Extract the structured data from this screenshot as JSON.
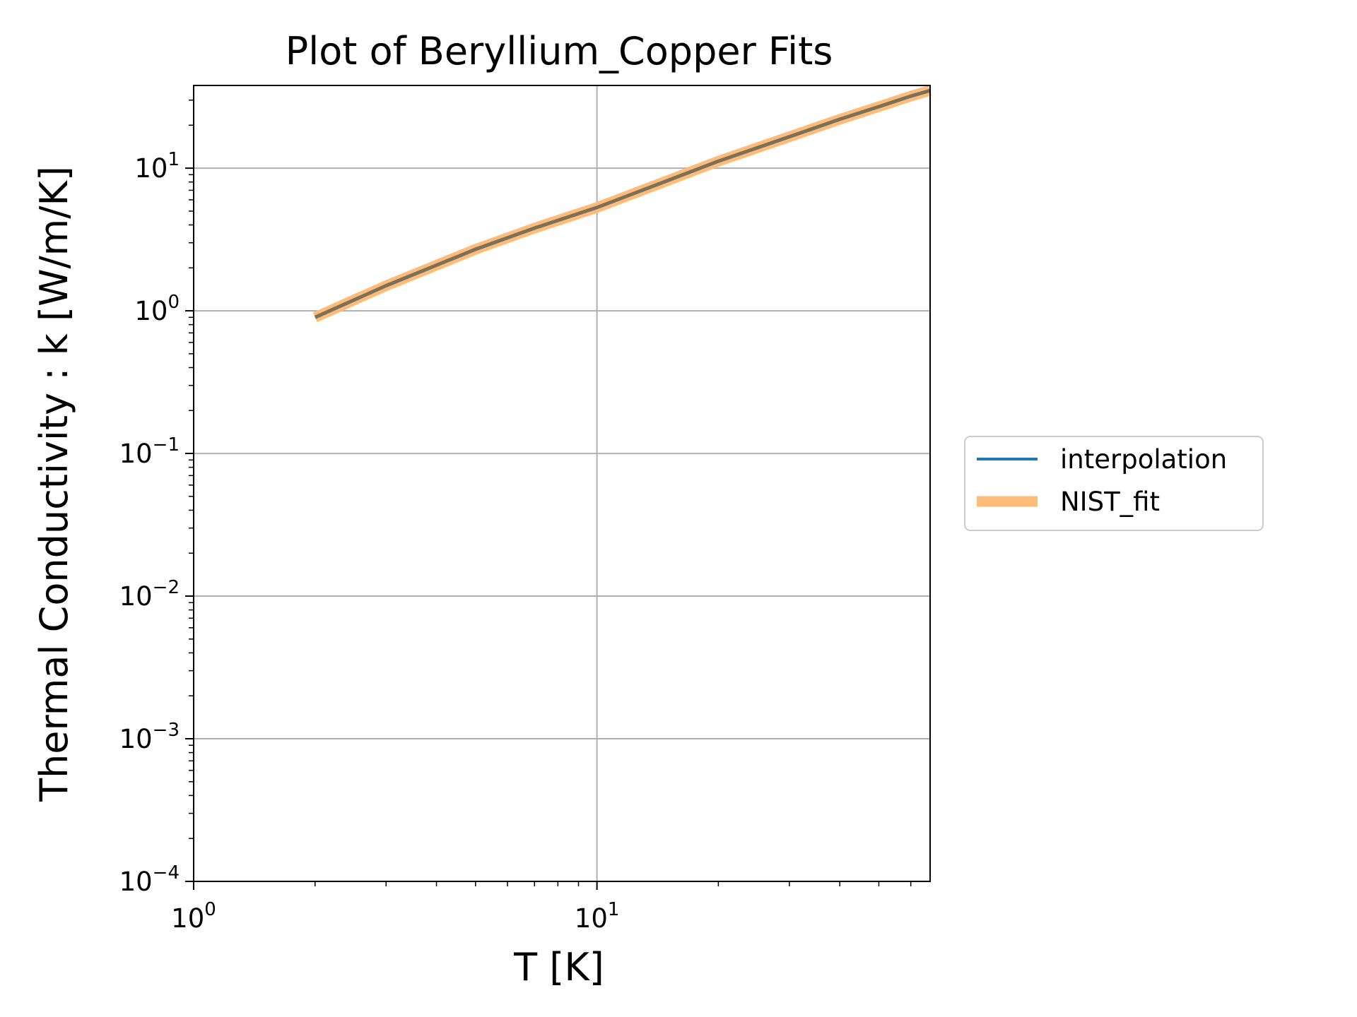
{
  "chart_data": {
    "type": "line",
    "title": "Plot of Beryllium_Copper Fits",
    "xlabel": "T [K]",
    "ylabel": "Thermal Conductivity : k [W/m/K]",
    "xscale": "log",
    "yscale": "log",
    "xlim": [
      1,
      67
    ],
    "ylim": [
      0.0001,
      38
    ],
    "grid": true,
    "legend": "right-outside",
    "x_ticks": [
      {
        "value": 1,
        "base": "10",
        "exp": "0"
      },
      {
        "value": 10,
        "base": "10",
        "exp": "1"
      }
    ],
    "y_ticks": [
      {
        "value": 0.0001,
        "base": "10",
        "exp": "−4"
      },
      {
        "value": 0.001,
        "base": "10",
        "exp": "−3"
      },
      {
        "value": 0.01,
        "base": "10",
        "exp": "−2"
      },
      {
        "value": 0.1,
        "base": "10",
        "exp": "−1"
      },
      {
        "value": 1,
        "base": "10",
        "exp": "0"
      },
      {
        "value": 10,
        "base": "10",
        "exp": "1"
      }
    ],
    "series": [
      {
        "name": "NIST_fit",
        "color": "#ffbb78",
        "x": [
          2,
          3,
          5,
          7,
          10,
          15,
          20,
          30,
          40,
          50,
          60,
          67
        ],
        "y": [
          0.9,
          1.5,
          2.7,
          3.8,
          5.3,
          8.2,
          11.2,
          16.6,
          22,
          27,
          32,
          35
        ]
      },
      {
        "name": "interpolation",
        "color": "#1f77b4",
        "x": [
          2,
          3,
          5,
          7,
          10,
          15,
          20,
          30,
          40,
          50,
          60,
          67
        ],
        "y": [
          0.9,
          1.5,
          2.7,
          3.8,
          5.3,
          8.2,
          11.2,
          16.6,
          22,
          27,
          32,
          35
        ]
      }
    ],
    "overlap_color": "#7b7058"
  }
}
